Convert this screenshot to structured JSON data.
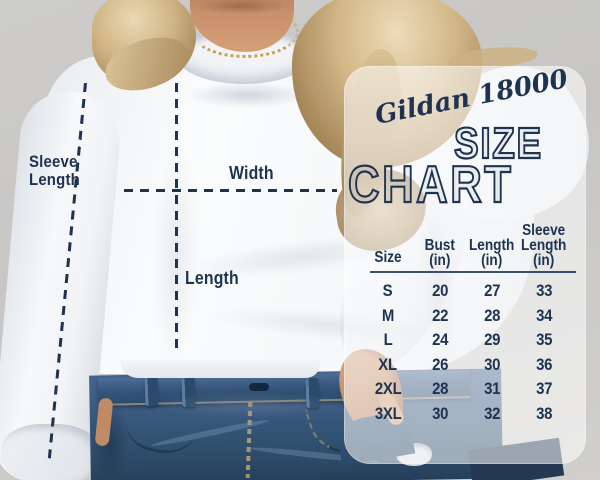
{
  "colors": {
    "navy": "#1d3350",
    "gold": "#c9a14f",
    "denim": "#3a5a82",
    "panel_bg": "rgba(255,255,255,0.55)"
  },
  "measurement_labels": {
    "sleeve_line1": "Sleeve",
    "sleeve_line2": "Length",
    "width": "Width",
    "length": "Length"
  },
  "panel": {
    "brand": "Gildan 18000",
    "title_top": "SIZE",
    "title_bottom": "CHART"
  },
  "size_chart": {
    "headers": {
      "size": "Size",
      "bust1": "Bust",
      "bust2": "(in)",
      "length1": "Length",
      "length2": "(in)",
      "sleeve1": "Sleeve",
      "sleeve2": "Length",
      "sleeve3": "(in)"
    },
    "rows": [
      {
        "size": "S",
        "bust": "20",
        "length": "27",
        "sleeve": "33"
      },
      {
        "size": "M",
        "bust": "22",
        "length": "28",
        "sleeve": "34"
      },
      {
        "size": "L",
        "bust": "24",
        "length": "29",
        "sleeve": "35"
      },
      {
        "size": "XL",
        "bust": "26",
        "length": "30",
        "sleeve": "36"
      },
      {
        "size": "2XL",
        "bust": "28",
        "length": "31",
        "sleeve": "37"
      },
      {
        "size": "3XL",
        "bust": "30",
        "length": "32",
        "sleeve": "38"
      }
    ]
  },
  "chart_data": {
    "type": "table",
    "title": "Gildan 18000 Size Chart",
    "columns": [
      "Size",
      "Bust (in)",
      "Length (in)",
      "Sleeve Length (in)"
    ],
    "rows": [
      [
        "S",
        20,
        27,
        33
      ],
      [
        "M",
        22,
        28,
        34
      ],
      [
        "L",
        24,
        29,
        35
      ],
      [
        "XL",
        26,
        30,
        36
      ],
      [
        "2XL",
        28,
        31,
        37
      ],
      [
        "3XL",
        30,
        32,
        38
      ]
    ]
  }
}
